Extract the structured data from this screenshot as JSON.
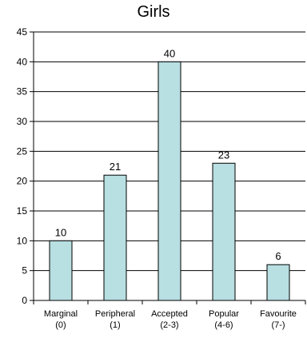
{
  "chart_data": {
    "type": "bar",
    "title": "Girls",
    "categories": [
      [
        "Marginal",
        "(0)"
      ],
      [
        "Peripheral",
        "(1)"
      ],
      [
        "Accepted",
        "(2-3)"
      ],
      [
        "Popular",
        "(4-6)"
      ],
      [
        "Favourite",
        "(7-)"
      ]
    ],
    "values": [
      10,
      21,
      40,
      23,
      6
    ],
    "data_labels": [
      "10",
      "21",
      "40",
      "23",
      "6"
    ],
    "ylim": [
      0,
      45
    ],
    "yticks": [
      0,
      5,
      10,
      15,
      20,
      25,
      30,
      35,
      40,
      45
    ],
    "grid": true,
    "xlabel": "",
    "ylabel": "",
    "colors": {
      "bar_fill": "#b8dfe2",
      "bar_stroke": "#000000",
      "grid": "#000000",
      "axis": "#000000"
    }
  }
}
